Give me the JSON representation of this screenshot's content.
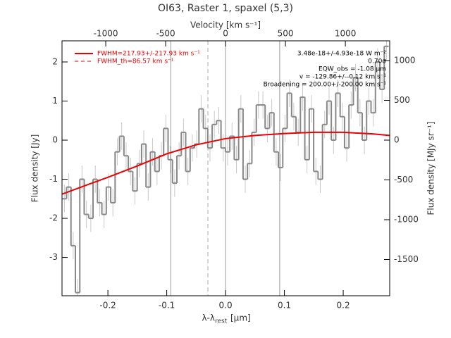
{
  "chart_data": {
    "type": "line",
    "title": "OI63, Raster 1, spaxel (5,3)",
    "xlabel": "λ-λ",
    "xlabel_sub": "rest",
    "xlabel_unit": " [μm]",
    "ylabel": "Flux density [Jy]",
    "x2label": "Velocity [km s⁻¹]",
    "y2label": "Flux density [MJy sr⁻¹]",
    "xlim": [
      -0.278,
      0.279
    ],
    "xticks": [
      -0.2,
      -0.1,
      {
        "value": 0,
        "label": "0.0"
      },
      0.1,
      0.2
    ],
    "ylim": [
      -3.98,
      2.54
    ],
    "yticks": [
      2,
      1,
      0,
      -1,
      -2,
      -3
    ],
    "x2lim": [
      -1365,
      1370
    ],
    "x2ticks": [
      -1000,
      -500,
      0,
      500,
      1000
    ],
    "y2lim": [
      -1956,
      1248
    ],
    "y2ticks": [
      1000,
      500,
      0,
      -500,
      -1000,
      -1500
    ],
    "vlines": [
      -0.093,
      0,
      0.092
    ],
    "vline_dashed": -0.03,
    "series": [
      {
        "name": "spectrum",
        "color": "#888888",
        "error": 0.35,
        "x": [
          -0.274,
          -0.2665,
          -0.259,
          -0.2515,
          -0.244,
          -0.2365,
          -0.229,
          -0.2215,
          -0.214,
          -0.2065,
          -0.199,
          -0.1915,
          -0.184,
          -0.1765,
          -0.169,
          -0.1615,
          -0.154,
          -0.1465,
          -0.139,
          -0.1315,
          -0.124,
          -0.1165,
          -0.109,
          -0.1015,
          -0.094,
          -0.0865,
          -0.079,
          -0.0715,
          -0.064,
          -0.0565,
          -0.049,
          -0.0415,
          -0.034,
          -0.0265,
          -0.019,
          -0.0115,
          -0.004,
          0.0035,
          0.011,
          0.0185,
          0.026,
          0.0335,
          0.041,
          0.0485,
          0.056,
          0.0635,
          0.071,
          0.0785,
          0.086,
          0.0935,
          0.101,
          0.1085,
          0.116,
          0.1235,
          0.131,
          0.1385,
          0.146,
          0.1535,
          0.161,
          0.1685,
          0.176,
          0.1835,
          0.191,
          0.1985,
          0.206,
          0.2135,
          0.221,
          0.2285,
          0.236,
          0.2435,
          0.251,
          0.2585,
          0.266,
          0.2735
        ],
        "values": [
          -1.5,
          -1.2,
          -2.7,
          -3.9,
          -1.0,
          -1.9,
          -2.0,
          -1.0,
          -1.6,
          -1.9,
          -1.2,
          -1.6,
          -0.3,
          0.1,
          -0.4,
          -0.8,
          -1.3,
          -0.6,
          -0.1,
          -1.2,
          -0.3,
          -0.8,
          -0.4,
          0.3,
          -0.5,
          -1.1,
          -0.4,
          0.2,
          -0.8,
          -0.2,
          -0.1,
          0.8,
          0.3,
          -0.2,
          0.4,
          0.5,
          -0.2,
          -0.3,
          0.1,
          -0.5,
          0.8,
          -1.0,
          -0.6,
          0.2,
          0.9,
          0.9,
          0.3,
          0.7,
          -0.3,
          -0.7,
          0.3,
          1.2,
          0.6,
          0.2,
          1.1,
          -0.5,
          0.8,
          -0.8,
          -1.0,
          0.4,
          1.0,
          0.0,
          1.2,
          0.6,
          -0.2,
          0.9,
          1.6,
          0.7,
          0.0,
          1.0,
          0.7,
          2.0,
          1.3,
          2.4
        ]
      },
      {
        "name": "FWHM=217.93+/-217.93 km s⁻¹",
        "color": "#ee0000",
        "x": [
          -0.278,
          -0.2,
          -0.15,
          -0.1,
          -0.05,
          0,
          0.05,
          0.1,
          0.15,
          0.2,
          0.25,
          0.279
        ],
        "values": [
          -1.38,
          -0.95,
          -0.66,
          -0.35,
          -0.12,
          0.04,
          0.12,
          0.17,
          0.2,
          0.2,
          0.16,
          0.12
        ]
      }
    ],
    "legend_dashed": "FWHM_th=86.57 km s⁻¹",
    "annotations": [
      "3.48e-18+/-4.93e-18 W m⁻²",
      "0.70σ",
      "EQW_obs = -1.08 μm",
      "v = -129.86+/--0.12 km s⁻¹",
      "Broadening = 200.00+/-200.00 km s⁻¹"
    ]
  }
}
